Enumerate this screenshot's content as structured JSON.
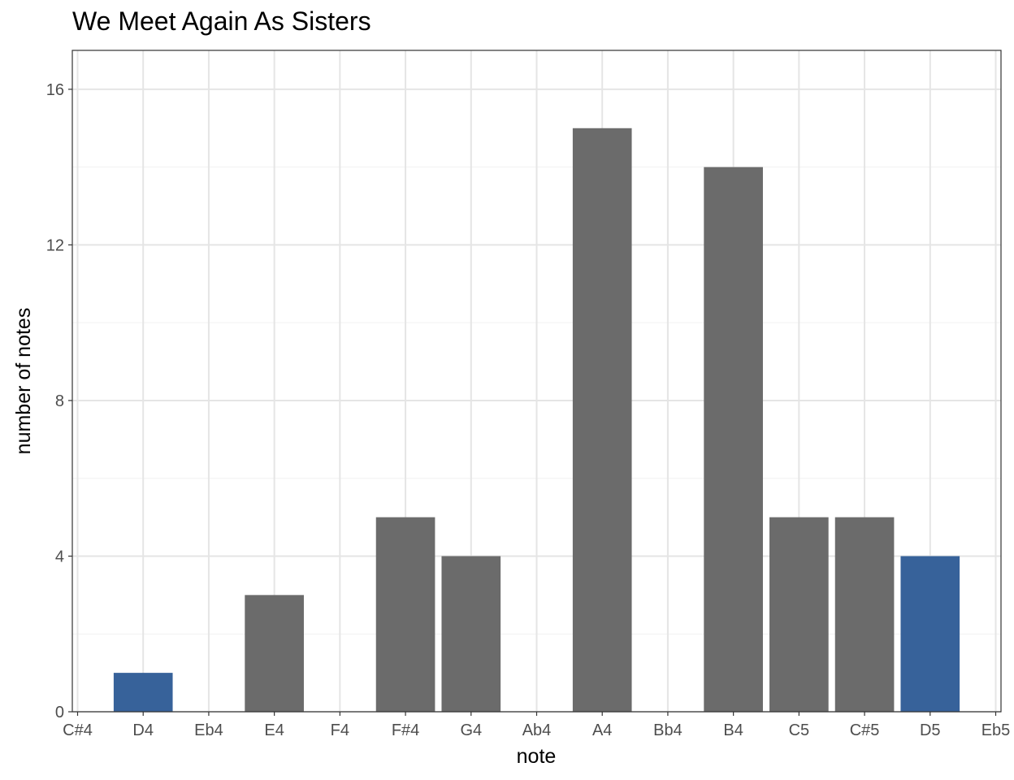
{
  "chart_data": {
    "type": "bar",
    "title": "We Meet Again As Sisters",
    "xlabel": "note",
    "ylabel": "number of notes",
    "categories": [
      "C#4",
      "D4",
      "Eb4",
      "E4",
      "F4",
      "F#4",
      "G4",
      "Ab4",
      "A4",
      "Bb4",
      "B4",
      "C5",
      "C#5",
      "D5",
      "Eb5"
    ],
    "values": [
      0,
      1,
      0,
      3,
      0,
      5,
      4,
      0,
      15,
      0,
      14,
      5,
      5,
      4,
      0
    ],
    "highlighted": [
      "D4",
      "D5"
    ],
    "colors": {
      "default": "#6b6b6b",
      "highlight": "#37629a"
    },
    "y_ticks": [
      0,
      4,
      8,
      12,
      16
    ],
    "ylim": [
      0,
      17
    ],
    "grid": true,
    "legend": "none"
  }
}
